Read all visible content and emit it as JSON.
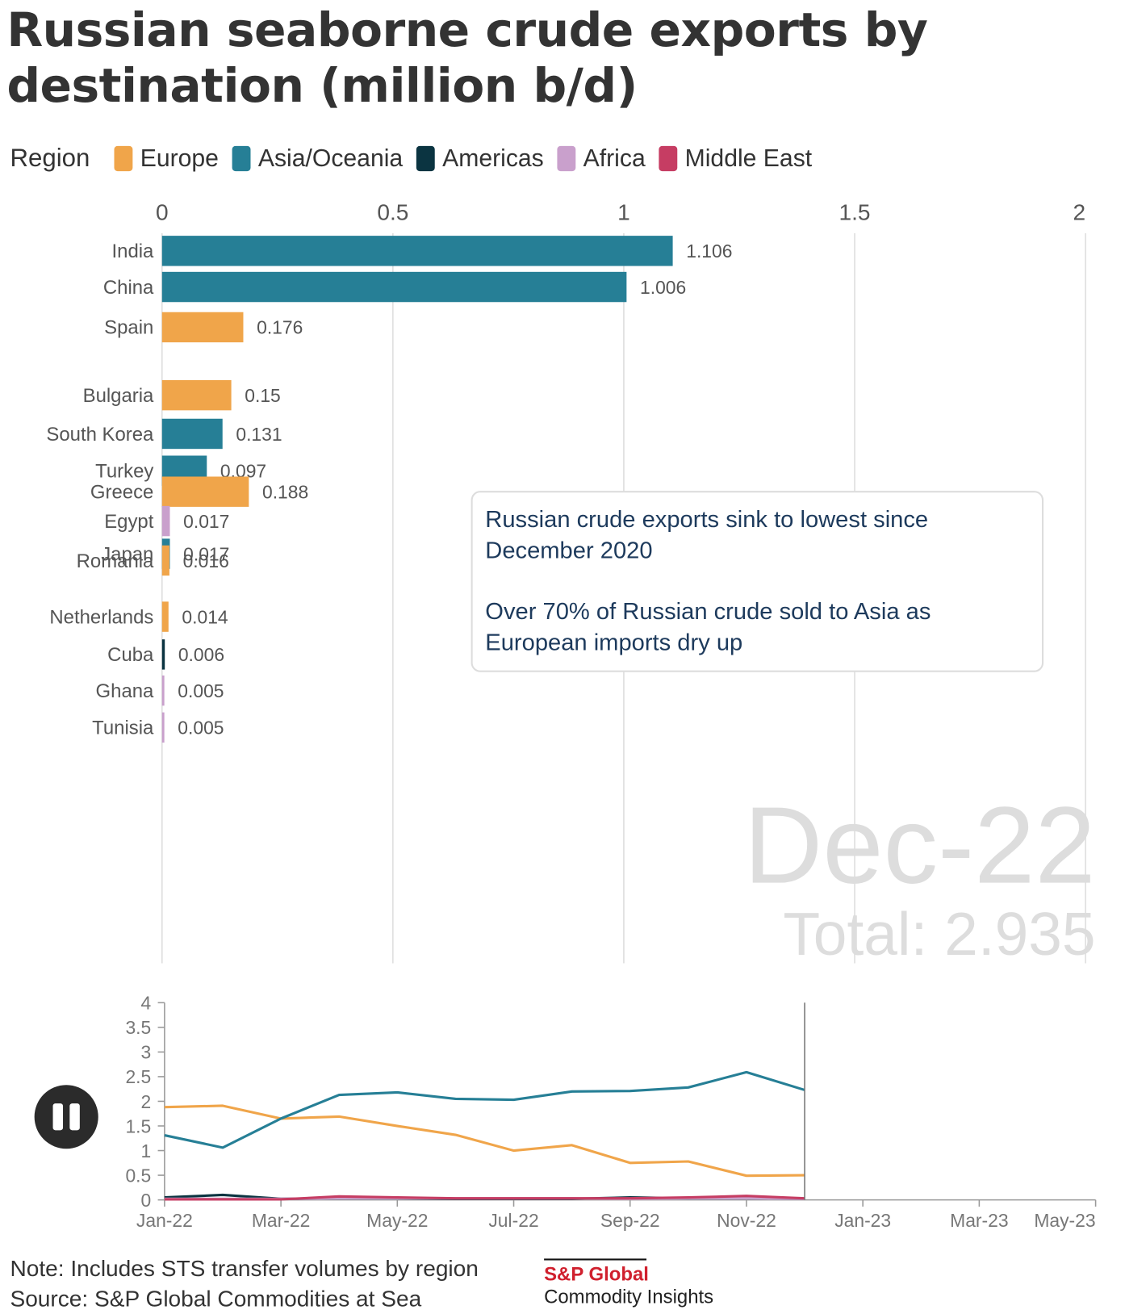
{
  "chart_data": [
    {
      "type": "bar",
      "orientation": "horizontal",
      "title": "Russian seaborne crude exports by destination (million b/d)",
      "categories": [
        "India",
        "China",
        "Spain",
        "Bulgaria",
        "South Korea",
        "Turkey",
        "Greece",
        "Egypt",
        "Japan",
        "Romania",
        "Netherlands",
        "Cuba",
        "Ghana",
        "Tunisia"
      ],
      "values": [
        1.106,
        1.006,
        0.176,
        0.15,
        0.131,
        0.097,
        0.188,
        0.017,
        0.017,
        0.016,
        0.014,
        0.006,
        0.005,
        0.005
      ],
      "colors": [
        "#267f96",
        "#267f96",
        "#f0a54a",
        "#f0a54a",
        "#267f96",
        "#267f96",
        "#f0a54a",
        "#c9a0cc",
        "#267f96",
        "#f0a54a",
        "#f0a54a",
        "#0b3441",
        "#c9a0cc",
        "#c9a0cc"
      ],
      "xlim": [
        0,
        2
      ],
      "xticks": [
        0,
        0.5,
        1,
        1.5,
        2
      ],
      "grid": true,
      "period": "Dec-22",
      "total_label": "Total:",
      "total": 2.935
    },
    {
      "type": "line",
      "legend_title": "Region",
      "x": [
        "Jan-22",
        "Feb-22",
        "Mar-22",
        "Apr-22",
        "May-22",
        "Jun-22",
        "Jul-22",
        "Aug-22",
        "Sep-22",
        "Oct-22",
        "Nov-22",
        "Dec-22"
      ],
      "xlim": [
        "Jan-22",
        "May-23"
      ],
      "xticks": [
        "Jan-22",
        "Mar-22",
        "May-22",
        "Jul-22",
        "Sep-22",
        "Nov-22",
        "Jan-23",
        "Mar-23",
        "May-23"
      ],
      "ylim": [
        0,
        4
      ],
      "yticks": [
        0,
        0.5,
        1,
        1.5,
        2,
        2.5,
        3,
        3.5,
        4
      ],
      "series": [
        {
          "name": "Europe",
          "color": "#f0a54a",
          "values": [
            1.88,
            1.91,
            1.65,
            1.69,
            1.5,
            1.32,
            1.0,
            1.11,
            0.75,
            0.78,
            0.49,
            0.5
          ]
        },
        {
          "name": "Asia/Oceania",
          "color": "#267f96",
          "values": [
            1.31,
            1.06,
            1.65,
            2.13,
            2.18,
            2.05,
            2.03,
            2.2,
            2.21,
            2.28,
            2.59,
            2.23
          ]
        },
        {
          "name": "Americas",
          "color": "#0b3441",
          "values": [
            0.05,
            0.1,
            0.02,
            0.03,
            0.03,
            0.02,
            0.02,
            0.02,
            0.05,
            0.03,
            0.03,
            0.02
          ]
        },
        {
          "name": "Africa",
          "color": "#c9a0cc",
          "values": [
            0.02,
            0.02,
            0.02,
            0.03,
            0.03,
            0.03,
            0.03,
            0.03,
            0.02,
            0.03,
            0.03,
            0.02
          ]
        },
        {
          "name": "Middle East",
          "color": "#c63d63",
          "values": [
            0.01,
            0.01,
            0.01,
            0.07,
            0.05,
            0.03,
            0.03,
            0.03,
            0.03,
            0.05,
            0.08,
            0.03
          ]
        }
      ]
    }
  ],
  "annotation": [
    "Russian crude exports sink to lowest since December 2020",
    "Over 70% of Russian crude sold to Asia as European imports dry up"
  ],
  "footer": {
    "note": "Note: Includes STS transfer volumes by region",
    "source": "Source: S&P Global Commodities at Sea"
  },
  "logo": {
    "brand": "S&P Global",
    "tagline": "Commodity Insights"
  }
}
